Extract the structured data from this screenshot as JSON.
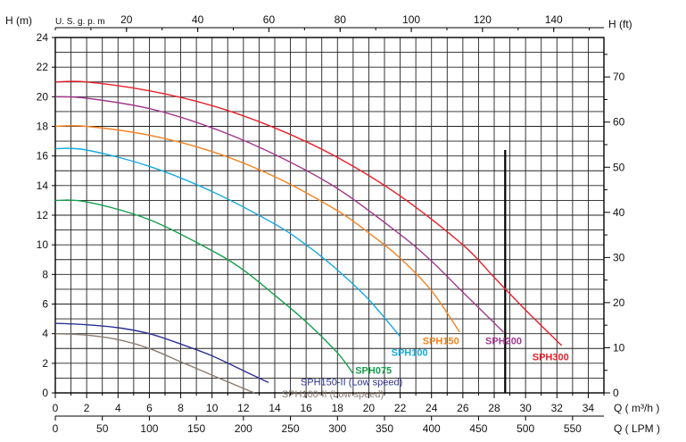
{
  "chart_data": {
    "type": "line",
    "title": "",
    "axes": {
      "x_bottom": {
        "label": "Q",
        "unit": "( m³/h )",
        "min": 0,
        "max": 35,
        "step": 2,
        "ticks": [
          "0",
          "2",
          "4",
          "6",
          "8",
          "10",
          "12",
          "14",
          "16",
          "18",
          "20",
          "22",
          "24",
          "26",
          "28",
          "30",
          "32",
          "34"
        ]
      },
      "x_bottom2": {
        "label": "Q",
        "unit": "( LPM )",
        "ticks": [
          "0",
          "50",
          "100",
          "150",
          "200",
          "250",
          "300",
          "350",
          "400",
          "450",
          "500",
          "550"
        ]
      },
      "x_top": {
        "label": "U. S. g. p. m",
        "ticks": [
          "20",
          "40",
          "60",
          "80",
          "100",
          "120",
          "140"
        ]
      },
      "y_left": {
        "label": "H (m)",
        "min": 0,
        "max": 24,
        "ticks": [
          "0",
          "2",
          "4",
          "6",
          "8",
          "10",
          "12",
          "14",
          "16",
          "18",
          "20",
          "22",
          "24"
        ]
      },
      "y_right": {
        "label": "H (ft)",
        "ticks": [
          "0",
          "10",
          "20",
          "30",
          "40",
          "50",
          "60",
          "70"
        ]
      }
    },
    "grid": true,
    "vertical_marker_x": 28.7,
    "series": [
      {
        "name": "SPH300",
        "color": "#e8202a",
        "x": [
          0,
          2,
          6,
          10,
          14,
          18,
          22,
          26,
          28,
          30,
          32.3
        ],
        "y": [
          21,
          21,
          20.4,
          19.4,
          17.9,
          15.9,
          13.3,
          10,
          7.8,
          5.6,
          3.2
        ]
      },
      {
        "name": "SPH200",
        "color": "#a2398f",
        "x": [
          0,
          2,
          6,
          10,
          14,
          18,
          22,
          24,
          26,
          28.6
        ],
        "y": [
          20,
          19.9,
          19.2,
          17.9,
          16.1,
          13.8,
          10.7,
          8.9,
          6.8,
          4.1
        ]
      },
      {
        "name": "SPH150",
        "color": "#f5821f",
        "x": [
          0,
          2,
          6,
          10,
          14,
          18,
          20,
          22,
          24,
          25.8
        ],
        "y": [
          18,
          18,
          17.4,
          16.3,
          14.6,
          12.3,
          10.8,
          9.1,
          6.9,
          4.1
        ]
      },
      {
        "name": "SPH100",
        "color": "#16a9e0",
        "x": [
          0,
          2,
          6,
          10,
          14,
          16,
          18,
          20,
          22
        ],
        "y": [
          16.5,
          16.4,
          15.3,
          13.6,
          11.4,
          10,
          8.3,
          6.3,
          3.8
        ]
      },
      {
        "name": "SPH075",
        "color": "#13a04b",
        "x": [
          0,
          2,
          6,
          10,
          12,
          14,
          16,
          18,
          19
        ],
        "y": [
          13,
          12.9,
          11.7,
          9.6,
          8.3,
          6.6,
          4.8,
          2.7,
          1.3
        ]
      },
      {
        "name": "SPH150-II (Low speed)",
        "color": "#2e3192",
        "x": [
          0,
          2,
          4,
          6,
          8,
          10,
          12,
          13.6
        ],
        "y": [
          4.7,
          4.6,
          4.4,
          4,
          3.3,
          2.5,
          1.5,
          0.7
        ]
      },
      {
        "name": "SPH100-II (Low speed)",
        "color": "#8a7a70",
        "x": [
          0,
          2,
          4,
          6,
          8,
          10,
          12,
          12.7
        ],
        "y": [
          4,
          3.9,
          3.6,
          3,
          2.1,
          1.2,
          0.3,
          0
        ]
      }
    ],
    "series_labels": [
      {
        "series": "SPH300",
        "at_x": 31.6,
        "at_y": 2.2,
        "bold": true
      },
      {
        "series": "SPH200",
        "at_x": 28.6,
        "at_y": 3.3,
        "bold": true
      },
      {
        "series": "SPH150",
        "at_x": 24.6,
        "at_y": 3.3,
        "bold": true
      },
      {
        "series": "SPH100",
        "at_x": 22.6,
        "at_y": 2.5,
        "bold": true
      },
      {
        "series": "SPH075",
        "at_x": 20.3,
        "at_y": 1.3,
        "bold": true
      },
      {
        "series": "SPH150-II (Low speed)",
        "at_x": 18.9,
        "at_y": 0.5,
        "bold": false
      },
      {
        "series": "SPH100-II (Low speed)",
        "at_x": 17.7,
        "at_y": -0.3,
        "bold": false
      }
    ]
  }
}
